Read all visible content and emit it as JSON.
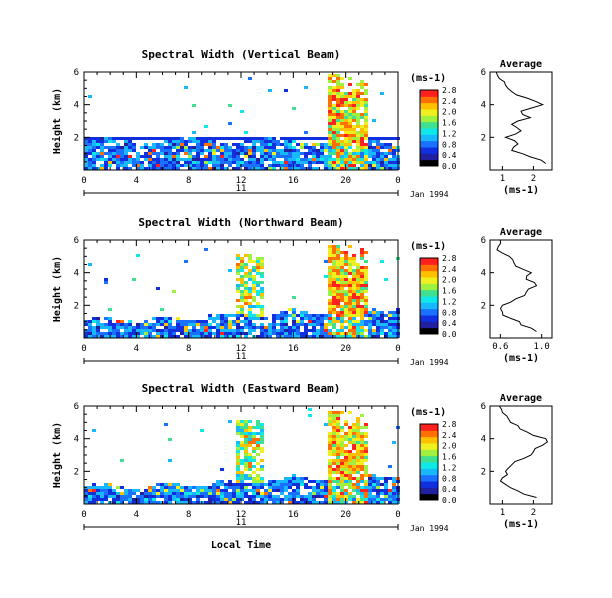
{
  "chart_data": {
    "type": "heatmap",
    "date_label": "Jan 1994",
    "day_label": "11",
    "xlabel": "Local Time",
    "x_ticks": [
      "0",
      "4",
      "8",
      "12",
      "16",
      "20",
      "0"
    ],
    "colorbar": {
      "unit_label": "(ms-1)",
      "ticks": [
        "0.0",
        "0.4",
        "0.8",
        "1.2",
        "1.6",
        "2.0",
        "2.4",
        "2.8"
      ],
      "colors": [
        "#000000",
        "#2020a0",
        "#1030e0",
        "#1a70ff",
        "#18b8ff",
        "#10e8e8",
        "#40e090",
        "#a0f040",
        "#f0f020",
        "#ffc000",
        "#ff7000",
        "#ff2020"
      ]
    },
    "panels": [
      {
        "title": "Spectral Width (Vertical Beam)",
        "ylabel": "Height (km)",
        "y_ticks": [
          "2",
          "4",
          "6"
        ],
        "ylim": [
          0,
          6
        ],
        "xlim": [
          0,
          24
        ],
        "average": {
          "title": "Average",
          "xlabel": "(ms-1)",
          "x_ticks": [
            "1",
            "2"
          ],
          "xlim": [
            0.6,
            2.6
          ],
          "y_ticks": [
            "2",
            "4",
            "6"
          ],
          "heights": [
            0.4,
            0.8,
            1.2,
            1.6,
            2.0,
            2.4,
            2.8,
            3.2,
            3.6,
            4.0,
            4.4,
            4.8,
            5.2,
            5.6,
            6.0
          ],
          "values": [
            2.4,
            1.9,
            1.3,
            1.5,
            1.1,
            1.6,
            1.3,
            1.9,
            1.6,
            2.3,
            1.8,
            1.3,
            1.1,
            0.9,
            0.8
          ]
        }
      },
      {
        "title": "Spectral Width (Northward Beam)",
        "ylabel": "Height (km)",
        "y_ticks": [
          "2",
          "4",
          "6"
        ],
        "ylim": [
          0,
          6
        ],
        "xlim": [
          0,
          24
        ],
        "average": {
          "title": "Average",
          "xlabel": "(ms-1)",
          "x_ticks": [
            "0.6",
            "1.0"
          ],
          "xlim": [
            0.5,
            1.1
          ],
          "y_ticks": [
            "2",
            "4",
            "6"
          ],
          "heights": [
            0.4,
            0.8,
            1.2,
            1.6,
            2.0,
            2.4,
            2.8,
            3.2,
            3.6,
            4.0,
            4.4,
            4.8,
            5.2,
            5.6,
            6.0
          ],
          "values": [
            0.95,
            0.8,
            0.7,
            0.62,
            0.62,
            0.75,
            0.85,
            0.95,
            0.85,
            0.9,
            0.75,
            0.72,
            0.62,
            0.58,
            0.6
          ]
        }
      },
      {
        "title": "Spectral Width (Eastward Beam)",
        "ylabel": "Height (km)",
        "y_ticks": [
          "2",
          "4",
          "6"
        ],
        "ylim": [
          0,
          6
        ],
        "xlim": [
          0,
          24
        ],
        "average": {
          "title": "Average",
          "xlabel": "(ms-1)",
          "x_ticks": [
            "1",
            "2"
          ],
          "xlim": [
            0.6,
            2.6
          ],
          "y_ticks": [
            "2",
            "4",
            "6"
          ],
          "heights": [
            0.4,
            0.8,
            1.2,
            1.6,
            2.0,
            2.4,
            2.8,
            3.2,
            3.6,
            4.0,
            4.4,
            4.8,
            5.2,
            5.6,
            6.0
          ],
          "values": [
            2.1,
            1.5,
            1.1,
            1.0,
            1.1,
            1.3,
            1.7,
            2.0,
            2.3,
            2.4,
            1.8,
            1.5,
            1.2,
            1.0,
            0.9
          ]
        }
      }
    ]
  }
}
